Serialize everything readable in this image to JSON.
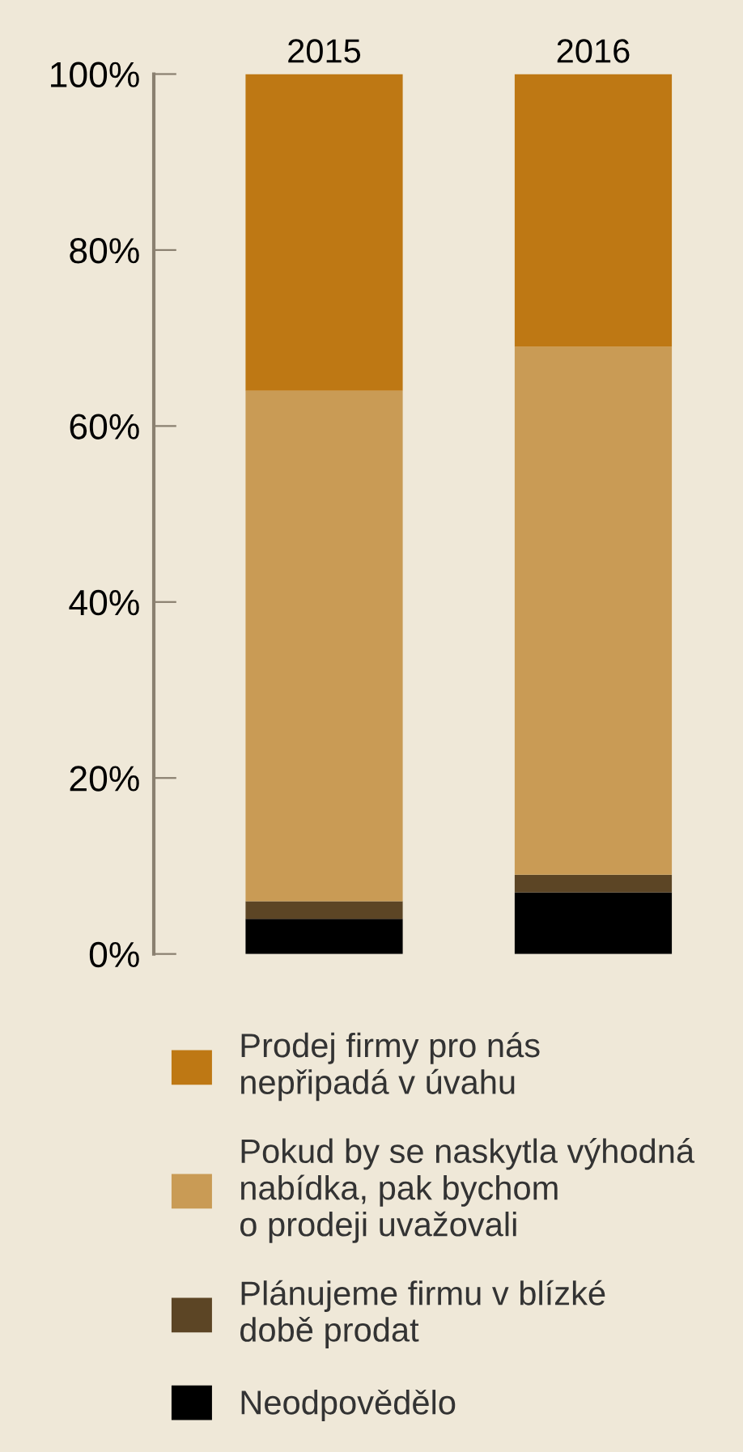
{
  "chart_data": {
    "type": "bar",
    "stacked": true,
    "categories": [
      "2015",
      "2016"
    ],
    "series": [
      {
        "name": "Neodpovědělo",
        "color": "#000000",
        "values": [
          4,
          7
        ]
      },
      {
        "name": "Plánujeme firmu v blízké\ndobě prodat",
        "color": "#5c4525",
        "values": [
          2,
          2
        ]
      },
      {
        "name": "Pokud by se naskytla výhodná\nnabídka, pak bychom\no prodeji uvažovali",
        "color": "#c99b55",
        "values": [
          58,
          60
        ]
      },
      {
        "name": "Prodej firmy pro nás\nnepřipadá v úvahu",
        "color": "#be7814",
        "values": [
          36,
          31
        ]
      }
    ],
    "ylim": [
      0,
      100
    ],
    "yticks": [
      {
        "value": 0,
        "label": "0%"
      },
      {
        "value": 20,
        "label": "20%"
      },
      {
        "value": 40,
        "label": "40%"
      },
      {
        "value": 60,
        "label": "60%"
      },
      {
        "value": 80,
        "label": "80%"
      },
      {
        "value": 100,
        "label": "100%"
      }
    ],
    "grid": false,
    "legend": "bottom"
  }
}
